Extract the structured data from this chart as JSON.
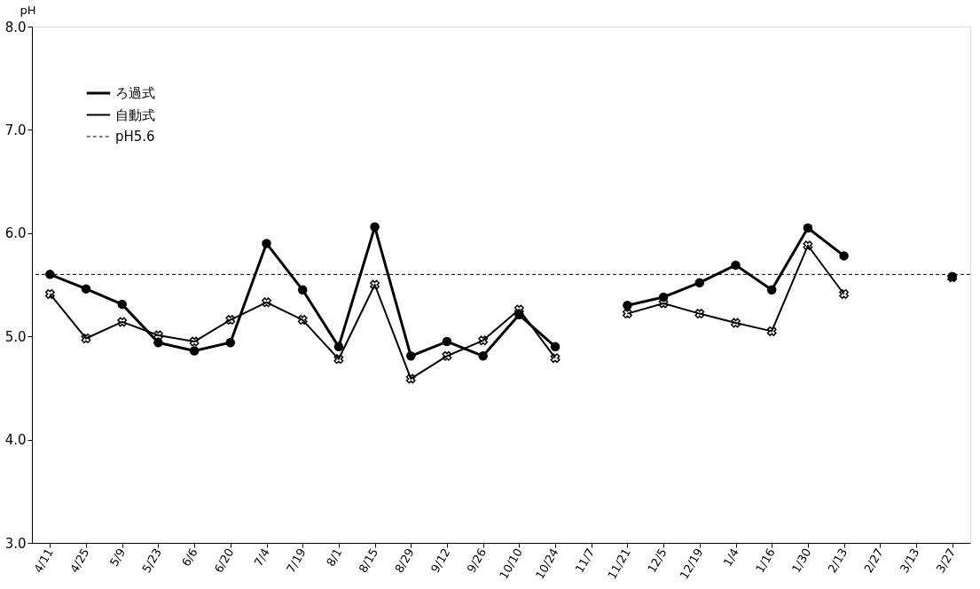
{
  "chart_data": {
    "type": "line",
    "ylabel": "pH",
    "categories": [
      "4/11",
      "4/25",
      "5/9",
      "5/23",
      "6/6",
      "6/20",
      "7/4",
      "7/19",
      "8/1",
      "8/15",
      "8/29",
      "9/12",
      "9/26",
      "10/10",
      "10/24",
      "11/7",
      "11/21",
      "12/5",
      "12/19",
      "1/4",
      "1/16",
      "1/30",
      "2/13",
      "2/27",
      "3/13",
      "3/27"
    ],
    "series": [
      {
        "name": "ろ過式",
        "color": "#000000",
        "marker": "circle",
        "values": [
          5.6,
          5.46,
          5.31,
          4.94,
          4.86,
          4.94,
          5.9,
          5.45,
          4.9,
          6.06,
          4.81,
          4.95,
          4.81,
          5.21,
          4.9,
          null,
          5.3,
          5.38,
          5.52,
          5.69,
          5.45,
          6.05,
          5.78,
          null,
          null,
          5.58
        ]
      },
      {
        "name": "自動式",
        "color": "#000000",
        "marker": "cross",
        "values": [
          5.41,
          4.98,
          5.14,
          5.01,
          4.95,
          5.16,
          5.33,
          5.16,
          4.78,
          5.5,
          4.59,
          4.81,
          4.96,
          5.26,
          4.79,
          null,
          5.22,
          5.32,
          5.22,
          5.13,
          5.05,
          5.88,
          5.41,
          null,
          null,
          5.57
        ]
      }
    ],
    "ref_lines": [
      {
        "axis": "y",
        "value": 5.6,
        "label": "pH5.6",
        "color": "#000000",
        "line_style": "dashed"
      }
    ],
    "ylim": [
      3.0,
      8.0
    ],
    "yticks": [
      {
        "value": 3,
        "label": "3.0"
      },
      {
        "value": 4,
        "label": "4.0"
      },
      {
        "value": 5,
        "label": "5.0"
      },
      {
        "value": 6,
        "label": "6.0"
      },
      {
        "value": 7,
        "label": "7.0"
      },
      {
        "value": 8,
        "label": "8.0"
      }
    ],
    "grid": false,
    "legend": "top left",
    "line_style": "solid"
  }
}
